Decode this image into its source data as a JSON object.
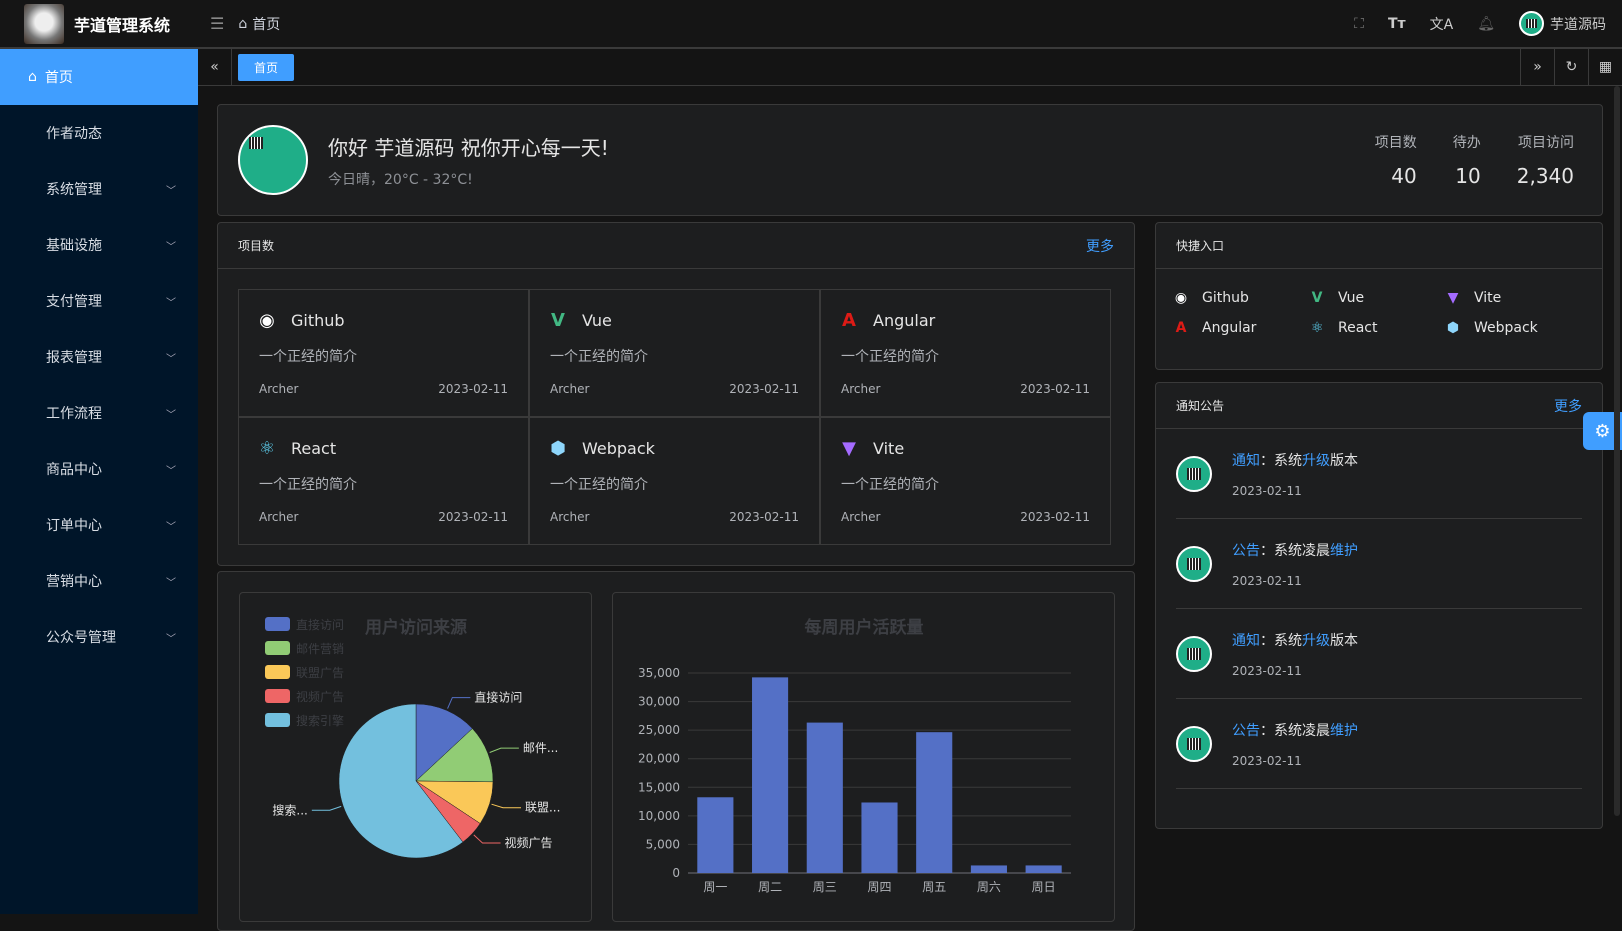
{
  "header": {
    "app_title": "芋道管理系统",
    "breadcrumb": "首页",
    "user_name": "芋道源码",
    "icons": [
      "fullscreen-icon",
      "font-size-icon",
      "translate-icon",
      "bell-icon"
    ]
  },
  "sidebar": {
    "items": [
      {
        "label": "首页",
        "active": true
      },
      {
        "label": "作者动态"
      },
      {
        "label": "系统管理",
        "expandable": true
      },
      {
        "label": "基础设施",
        "expandable": true
      },
      {
        "label": "支付管理",
        "expandable": true
      },
      {
        "label": "报表管理",
        "expandable": true
      },
      {
        "label": "工作流程",
        "expandable": true
      },
      {
        "label": "商品中心",
        "expandable": true
      },
      {
        "label": "订单中心",
        "expandable": true
      },
      {
        "label": "营销中心",
        "expandable": true
      },
      {
        "label": "公众号管理",
        "expandable": true
      }
    ]
  },
  "tabs": [
    {
      "label": "首页",
      "active": true
    }
  ],
  "welcome": {
    "greeting": "你好 芋道源码 祝你开心每一天!",
    "weather": "今日晴，20°C - 32°C!",
    "stats": [
      {
        "label": "项目数",
        "value": "40"
      },
      {
        "label": "待办",
        "value": "10"
      },
      {
        "label": "项目访问",
        "value": "2,340"
      }
    ]
  },
  "projects": {
    "title": "项目数",
    "more": "更多",
    "items": [
      {
        "name": "Github",
        "icon": "github-icon",
        "color": "#ffffff",
        "desc": "一个正经的简介",
        "author": "Archer",
        "date": "2023-02-11"
      },
      {
        "name": "Vue",
        "icon": "vue-icon",
        "color": "#42b883",
        "desc": "一个正经的简介",
        "author": "Archer",
        "date": "2023-02-11"
      },
      {
        "name": "Angular",
        "icon": "angular-icon",
        "color": "#dd1b16",
        "desc": "一个正经的简介",
        "author": "Archer",
        "date": "2023-02-11"
      },
      {
        "name": "React",
        "icon": "react-icon",
        "color": "#61dafb",
        "desc": "一个正经的简介",
        "author": "Archer",
        "date": "2023-02-11"
      },
      {
        "name": "Webpack",
        "icon": "webpack-icon",
        "color": "#8ed6fb",
        "desc": "一个正经的简介",
        "author": "Archer",
        "date": "2023-02-11"
      },
      {
        "name": "Vite",
        "icon": "vite-icon",
        "color": "#a46bff",
        "desc": "一个正经的简介",
        "author": "Archer",
        "date": "2023-02-11"
      }
    ]
  },
  "shortcuts": {
    "title": "快捷入口",
    "items": [
      {
        "name": "Github",
        "icon": "github-icon",
        "color": "#ffffff"
      },
      {
        "name": "Vue",
        "icon": "vue-icon",
        "color": "#42b883"
      },
      {
        "name": "Vite",
        "icon": "vite-icon",
        "color": "#a46bff"
      },
      {
        "name": "Angular",
        "icon": "angular-icon",
        "color": "#dd1b16"
      },
      {
        "name": "React",
        "icon": "react-icon",
        "color": "#61dafb"
      },
      {
        "name": "Webpack",
        "icon": "webpack-icon",
        "color": "#8ed6fb"
      }
    ]
  },
  "notices": {
    "title": "通知公告",
    "more": "更多",
    "items": [
      {
        "type": "通知",
        "pre": "：系统",
        "hl": "升级",
        "post": "版本",
        "date": "2023-02-11"
      },
      {
        "type": "公告",
        "pre": "：系统凌晨",
        "hl": "维护",
        "post": "",
        "date": "2023-02-11"
      },
      {
        "type": "通知",
        "pre": "：系统",
        "hl": "升级",
        "post": "版本",
        "date": "2023-02-11"
      },
      {
        "type": "公告",
        "pre": "：系统凌晨",
        "hl": "维护",
        "post": "",
        "date": "2023-02-11"
      }
    ]
  },
  "chart_data": [
    {
      "type": "pie",
      "title": "用户访问来源",
      "legend_position": "top-left",
      "categories": [
        "直接访问",
        "邮件营销",
        "联盟广告",
        "视频广告",
        "搜索引擎"
      ],
      "values": [
        335,
        310,
        234,
        135,
        1548
      ],
      "colors": [
        "#5470c6",
        "#91cc75",
        "#fac858",
        "#ee6666",
        "#73c0de"
      ],
      "slice_labels": [
        "直接访问",
        "邮件...",
        "联盟...",
        "视频广告",
        "搜索..."
      ]
    },
    {
      "type": "bar",
      "title": "每周用户活跃量",
      "categories": [
        "周一",
        "周二",
        "周三",
        "周四",
        "周五",
        "周六",
        "周日"
      ],
      "values": [
        13253,
        34235,
        26321,
        12340,
        24643,
        1322,
        1324
      ],
      "ylim": [
        0,
        35000
      ],
      "yticks": [
        "0",
        "5,000",
        "10,000",
        "15,000",
        "20,000",
        "25,000",
        "30,000",
        "35,000"
      ],
      "grid": true,
      "color": "#5470c6"
    }
  ]
}
